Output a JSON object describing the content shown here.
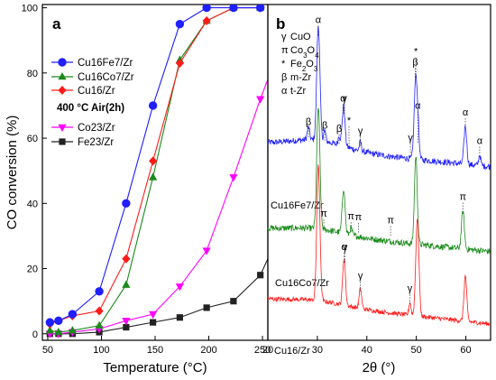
{
  "chart_data": [
    {
      "panel": "a",
      "type": "line",
      "xlabel": "Temperature (°C)",
      "ylabel": "CO conversion (%)",
      "xlim": [
        45,
        255
      ],
      "ylim": [
        -2,
        101
      ],
      "xticks": [
        50,
        100,
        150,
        200,
        250
      ],
      "yticks": [
        0,
        20,
        40,
        60,
        80,
        100
      ],
      "legend_note": "400 °C Air(2h)",
      "series": [
        {
          "name": "Cu16Fe7/Zr",
          "color": "#1f1fff",
          "marker": "circle",
          "x": [
            52,
            60,
            73,
            98,
            123,
            148,
            173,
            198,
            223,
            248
          ],
          "y": [
            3.5,
            4,
            6,
            13,
            40,
            70,
            95,
            100,
            100,
            100
          ]
        },
        {
          "name": "Cu16Co7/Zr",
          "color": "#1a8a1a",
          "marker": "triangle-up",
          "x": [
            52,
            60,
            73,
            98,
            123,
            148,
            173,
            198,
            223,
            248
          ],
          "y": [
            1,
            0.5,
            1,
            2.5,
            15,
            48,
            84,
            96,
            100,
            100
          ]
        },
        {
          "name": "Cu16/Zr",
          "color": "#ff1a1a",
          "marker": "diamond",
          "x": [
            52,
            60,
            73,
            98,
            123,
            148,
            173,
            198,
            223,
            248
          ],
          "y": [
            3,
            4,
            5.5,
            7,
            23,
            53,
            83,
            96,
            100,
            100
          ]
        },
        {
          "name": "Co23/Zr",
          "color": "#ff00ff",
          "marker": "triangle-down",
          "x": [
            52,
            60,
            73,
            98,
            123,
            148,
            173,
            198,
            223,
            248,
            255
          ],
          "y": [
            0,
            0,
            0.5,
            1.5,
            4,
            6,
            14.5,
            25.5,
            48,
            72,
            78
          ]
        },
        {
          "name": "Fe23/Zr",
          "color": "#222222",
          "marker": "square",
          "x": [
            52,
            60,
            73,
            98,
            123,
            148,
            173,
            198,
            223,
            248,
            255
          ],
          "y": [
            0,
            0,
            0,
            0.5,
            2,
            3.5,
            5,
            8,
            10,
            18,
            23
          ]
        }
      ]
    },
    {
      "panel": "b",
      "type": "line",
      "xlabel": "2θ (°)",
      "xlim": [
        20,
        65
      ],
      "xticks": [
        20,
        30,
        40,
        50,
        60
      ],
      "phase_legend": [
        {
          "symbol": "γ",
          "text": "CuO"
        },
        {
          "symbol": "π",
          "text": "Co3O4"
        },
        {
          "symbol": "*",
          "text": "Fe2O3"
        },
        {
          "symbol": "β",
          "text": "m-Zr"
        },
        {
          "symbol": "α",
          "text": "t-Zr"
        }
      ],
      "series": [
        {
          "name": "Cu16Fe7/Zr",
          "color": "#1f1fff",
          "offset": 0.66,
          "peak_labels": [
            {
              "x": 28.2,
              "label": "β"
            },
            {
              "x": 30.2,
              "label": "α"
            },
            {
              "x": 31.5,
              "label": "β"
            },
            {
              "x": 34.4,
              "label": "β"
            },
            {
              "x": 35.2,
              "label": "α"
            },
            {
              "x": 35.5,
              "label": "γ"
            },
            {
              "x": 36.4,
              "label": "*"
            },
            {
              "x": 38.7,
              "label": "γ"
            },
            {
              "x": 48.8,
              "label": "γ"
            },
            {
              "x": 49.8,
              "label": "β"
            },
            {
              "x": 49.9,
              "label": "*"
            },
            {
              "x": 50.3,
              "label": "α"
            },
            {
              "x": 59.9,
              "label": "α"
            },
            {
              "x": 62.8,
              "label": "α"
            }
          ]
        },
        {
          "name": "Cu16Co7/Zr",
          "color": "#1a8a1a",
          "offset": 0.33,
          "peak_labels": [
            {
              "x": 31.3,
              "label": "π"
            },
            {
              "x": 36.8,
              "label": "π"
            },
            {
              "x": 38.3,
              "label": "π"
            },
            {
              "x": 44.8,
              "label": "π"
            },
            {
              "x": 59.4,
              "label": "π"
            }
          ]
        },
        {
          "name": "Cu16/Zr",
          "color": "#ff1a1a",
          "offset": 0.0,
          "peak_labels": [
            {
              "x": 35.4,
              "label": "α"
            },
            {
              "x": 35.6,
              "label": "γ"
            },
            {
              "x": 38.7,
              "label": "γ"
            },
            {
              "x": 48.7,
              "label": "γ"
            }
          ]
        }
      ]
    }
  ]
}
